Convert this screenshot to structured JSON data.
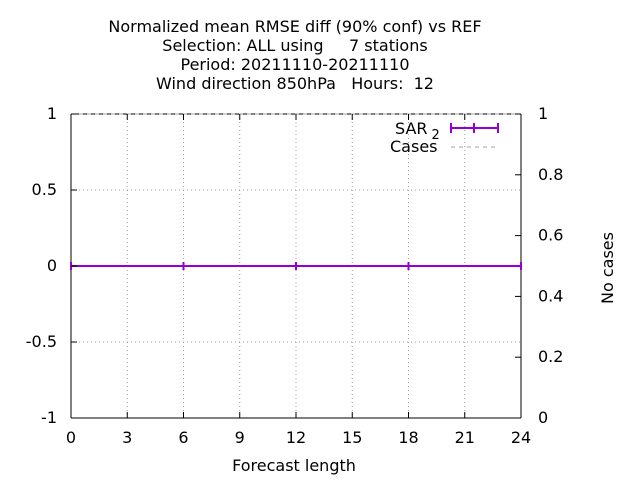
{
  "chart_data": {
    "type": "line",
    "title_lines": [
      "Normalized mean RMSE diff (90% conf) vs REF",
      "Selection: ALL using     7 stations",
      "Period: 20211110-20211110",
      "Wind direction 850hPa   Hours:  12"
    ],
    "xlabel": "Forecast length",
    "ylabel_right": "No cases",
    "xlim": [
      0,
      24
    ],
    "ylim": [
      -1,
      1
    ],
    "y2lim": [
      0,
      1
    ],
    "x_ticks": [
      0,
      3,
      6,
      9,
      12,
      15,
      18,
      21,
      24
    ],
    "y_ticks": [
      {
        "value": 1,
        "label": "1"
      },
      {
        "value": 0.5,
        "label": "0.5"
      },
      {
        "value": 0,
        "label": "0"
      },
      {
        "value": -0.5,
        "label": "-0.5"
      },
      {
        "value": -1,
        "label": "-1"
      }
    ],
    "y2_ticks": [
      {
        "value": 1,
        "label": "1"
      },
      {
        "value": 0.8,
        "label": "0.8"
      },
      {
        "value": 0.6,
        "label": "0.6"
      },
      {
        "value": 0.4,
        "label": "0.4"
      },
      {
        "value": 0.2,
        "label": "0.2"
      },
      {
        "value": 0,
        "label": "0"
      }
    ],
    "grid": true,
    "legend_position": "top-right",
    "series": [
      {
        "name": "SAR",
        "name_subscript": "2",
        "color": "#9400d3",
        "style": "line-errorbars",
        "x": [
          0,
          6,
          12,
          18,
          24
        ],
        "y": [
          0,
          0,
          0,
          0,
          0
        ],
        "err": [
          0,
          0,
          0,
          0,
          0
        ]
      },
      {
        "name": "Cases",
        "color": "#a0a0a0",
        "style": "dashed",
        "axis": "right",
        "x": [
          0,
          6,
          12,
          18,
          24
        ],
        "y": [
          1,
          1,
          1,
          1,
          1
        ]
      }
    ]
  }
}
